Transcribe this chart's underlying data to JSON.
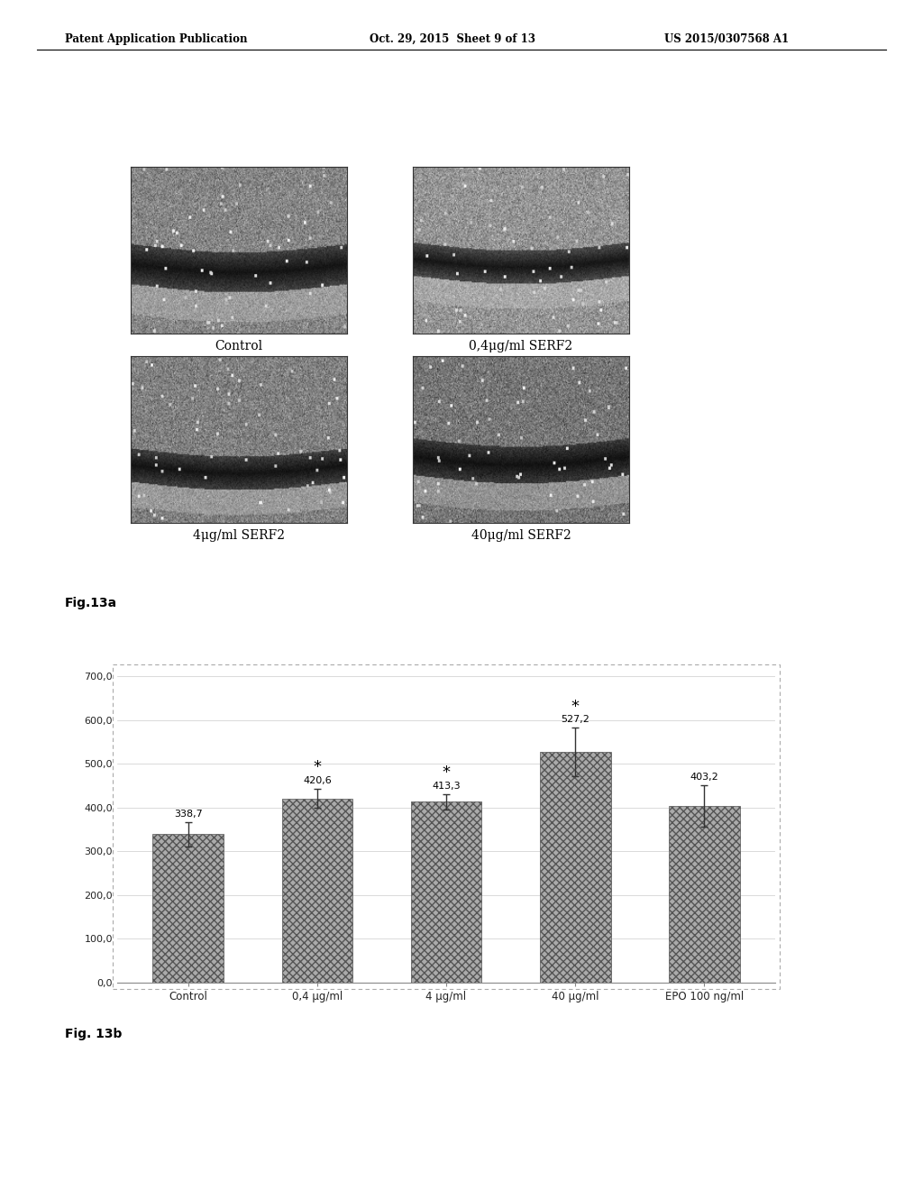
{
  "header_left": "Patent Application Publication",
  "header_center": "Oct. 29, 2015  Sheet 9 of 13",
  "header_right": "US 2015/0307568 A1",
  "fig13a_label": "Fig.13a",
  "fig13b_label": "Fig. 13b",
  "image_label_control": "Control",
  "image_label_04": "0,4μg/ml SERF2",
  "image_label_4": "4μg/ml SERF2",
  "image_label_40": "40μg/ml SERF2",
  "bar_categories": [
    "Control",
    "0,4 μg/ml",
    "4 μg/ml",
    "40 μg/ml",
    "EPO 100 ng/ml"
  ],
  "bar_values": [
    338.7,
    420.6,
    413.3,
    527.2,
    403.2
  ],
  "bar_errors": [
    28,
    22,
    18,
    55,
    48
  ],
  "bar_color": "#999999",
  "ylim": [
    0,
    700
  ],
  "yticks": [
    0.0,
    100.0,
    200.0,
    300.0,
    400.0,
    500.0,
    600.0,
    700.0
  ],
  "ytick_labels": [
    "0,0",
    "100,0",
    "200,0",
    "300,0",
    "400,0",
    "500,0",
    "600,0",
    "700,0"
  ],
  "value_labels": [
    "338,7",
    "420,6",
    "413,3",
    "527,2",
    "403,2"
  ],
  "significant_bars": [
    1,
    2,
    3
  ],
  "background_color": "#ffffff"
}
